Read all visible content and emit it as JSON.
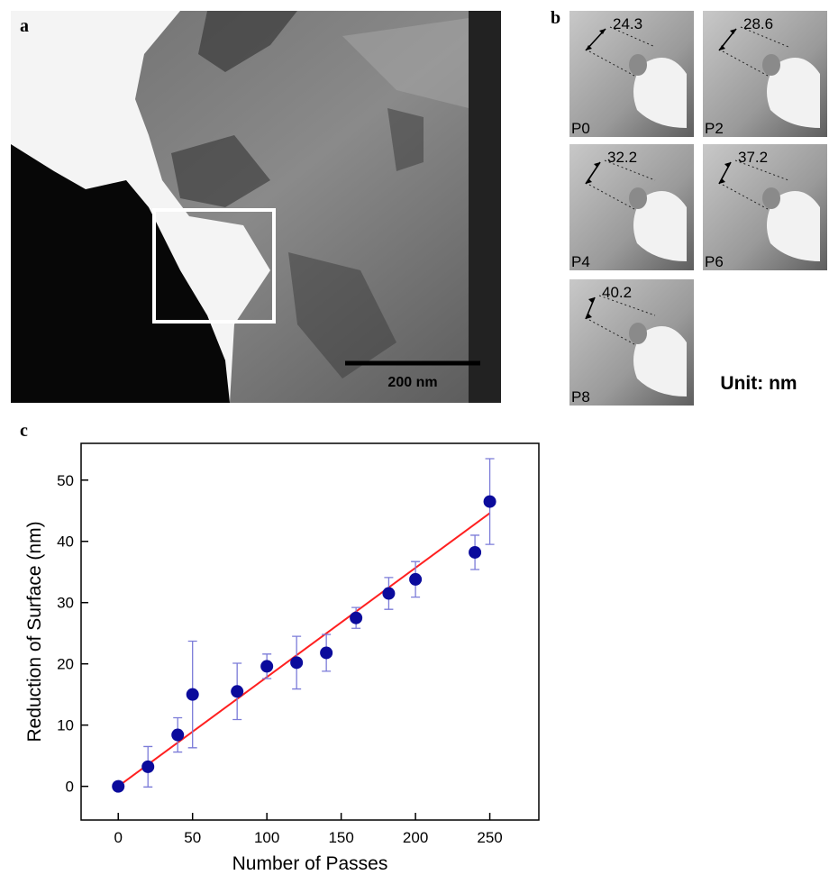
{
  "panel_a": {
    "label": "a",
    "scale_bar": "200 nm"
  },
  "panel_b": {
    "label": "b",
    "unit": "Unit: nm",
    "frames": [
      {
        "name": "P0",
        "measure": 24.3
      },
      {
        "name": "P2",
        "measure": 28.6
      },
      {
        "name": "P4",
        "measure": 32.2
      },
      {
        "name": "P6",
        "measure": 37.2
      },
      {
        "name": "P8",
        "measure": 40.2
      }
    ]
  },
  "chart_data": {
    "type": "scatter",
    "label": "c",
    "xlabel": "Number of Passes",
    "ylabel": "Reduction of Surface (nm)",
    "x": [
      0,
      20,
      40,
      50,
      80,
      100,
      120,
      140,
      160,
      182,
      200,
      240,
      250
    ],
    "series": [
      {
        "color": "#0b0b9c",
        "error_color": "#7b7bd8",
        "values": [
          0,
          3.2,
          8.4,
          15,
          15.5,
          19.6,
          20.2,
          21.8,
          27.5,
          31.5,
          33.8,
          38.2,
          46.5
        ],
        "errors": [
          0,
          3.3,
          2.8,
          8.7,
          4.6,
          2,
          4.3,
          3,
          1.7,
          2.6,
          2.9,
          2.8,
          7
        ]
      }
    ],
    "fit": {
      "color": "#ff2020",
      "x": [
        0,
        250
      ],
      "y": [
        0,
        44.6
      ]
    },
    "xlim": [
      -25,
      283
    ],
    "ylim": [
      -5.5,
      56
    ],
    "xticks": [
      0,
      50,
      100,
      150,
      200,
      250
    ],
    "yticks": [
      0,
      10,
      20,
      30,
      40,
      50
    ]
  }
}
